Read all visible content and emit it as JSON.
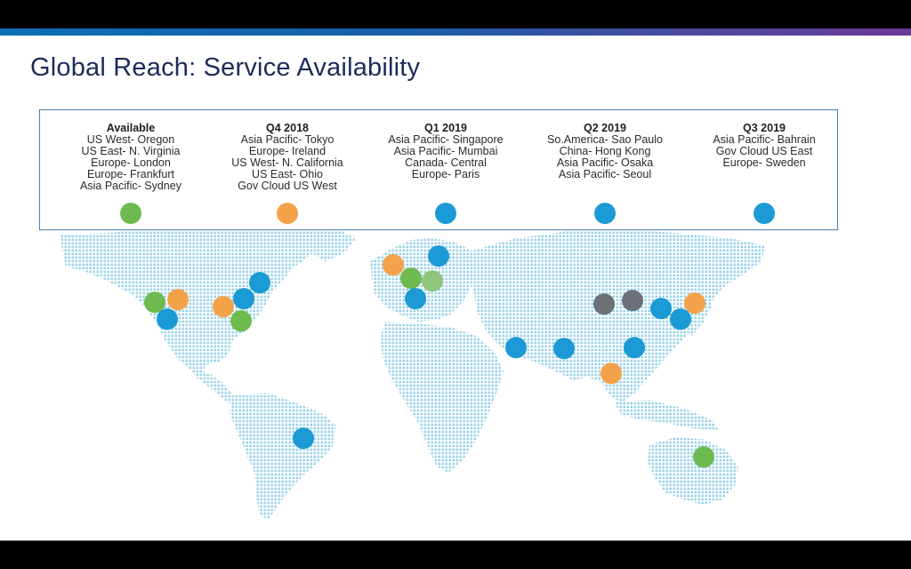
{
  "title": "Global Reach: Service Availability",
  "colors": {
    "available": "#6dbb4e",
    "q4_2018": "#f4a24a",
    "q1_2019": "#1c9ad6",
    "q2_2019": "#1c9ad6",
    "q3_2019": "#1c9ad6",
    "map_dots": "#8fcde9",
    "grey": "#6d7177",
    "light_green": "#8fc57a"
  },
  "legend": [
    {
      "heading": "Available",
      "color_key": "available",
      "items": [
        "US West- Oregon",
        "US East- N. Virginia",
        "Europe- London",
        "Europe- Frankfurt",
        "Asia Pacific- Sydney"
      ]
    },
    {
      "heading": "Q4 2018",
      "color_key": "q4_2018",
      "items": [
        "Asia Pacific- Tokyo",
        "Europe- Ireland",
        "US West- N. California",
        "US East- Ohio",
        "Gov Cloud US West"
      ]
    },
    {
      "heading": "Q1 2019",
      "color_key": "q1_2019",
      "items": [
        "Asia Pacific- Singapore",
        "Asia Pacific- Mumbai",
        "Canada- Central",
        "Europe- Paris"
      ]
    },
    {
      "heading": "Q2 2019",
      "color_key": "q2_2019",
      "items": [
        "So.America- Sao Paulo",
        "China- Hong Kong",
        "Asia Pacific- Osaka",
        "Asia Pacific- Seoul"
      ]
    },
    {
      "heading": "Q3 2019",
      "color_key": "q3_2019",
      "items": [
        "Asia Pacific- Bahrain",
        "Gov Cloud US East",
        "Europe- Sweden"
      ]
    }
  ],
  "map_markers": [
    {
      "color_key": "available"
    },
    {
      "color_key": "q4_2018"
    },
    {
      "color_key": "q1_2019"
    },
    {
      "color_key": "q4_2018"
    },
    {
      "color_key": "q1_2019"
    },
    {
      "color_key": "q1_2019"
    },
    {
      "color_key": "available"
    },
    {
      "color_key": "q4_2018"
    },
    {
      "color_key": "q1_2019"
    },
    {
      "color_key": "available"
    },
    {
      "color_key": "light_green"
    },
    {
      "color_key": "q1_2019"
    },
    {
      "color_key": "q1_2019"
    },
    {
      "color_key": "q1_2019"
    },
    {
      "color_key": "grey"
    },
    {
      "color_key": "grey"
    },
    {
      "color_key": "q1_2019"
    },
    {
      "color_key": "q1_2019"
    },
    {
      "color_key": "q4_2018"
    },
    {
      "color_key": "q1_2019"
    },
    {
      "color_key": "q4_2018"
    },
    {
      "color_key": "q1_2019"
    },
    {
      "color_key": "available"
    }
  ]
}
